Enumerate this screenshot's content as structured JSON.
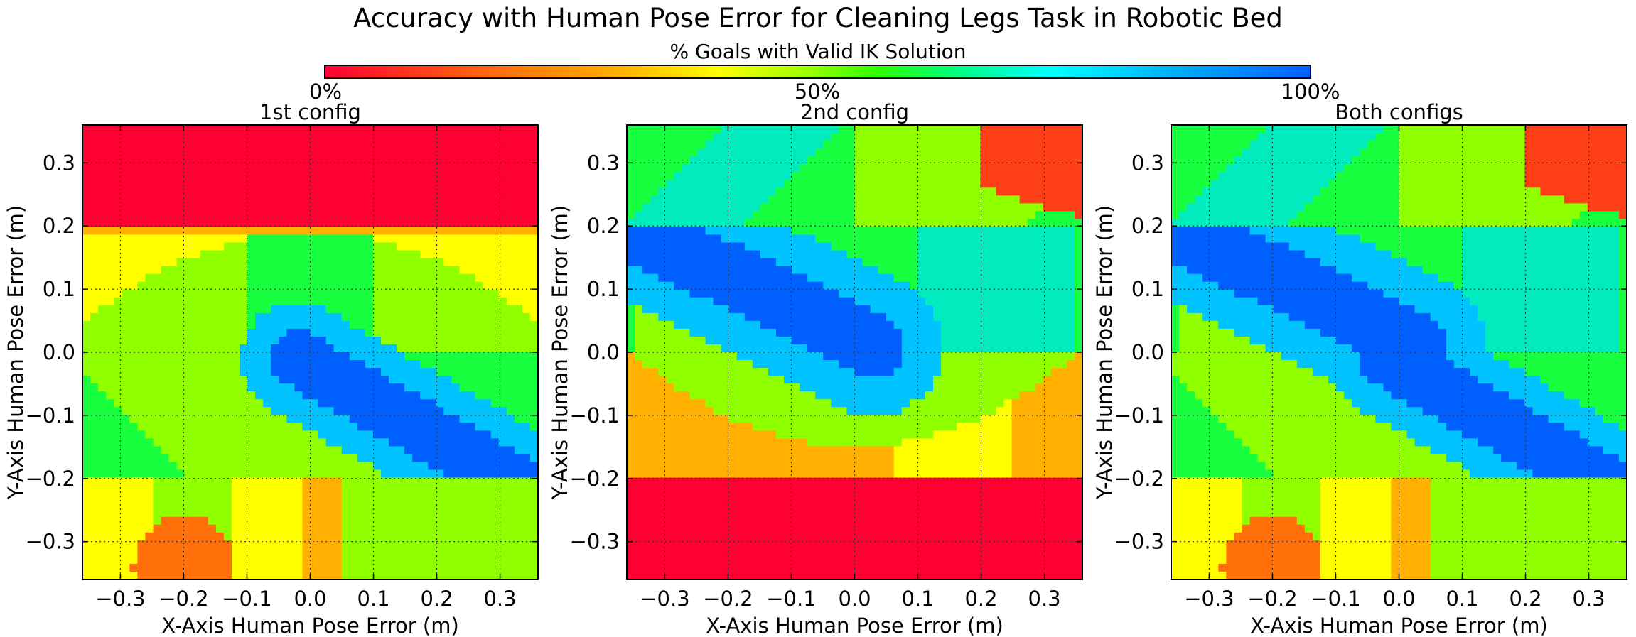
{
  "title": "Accuracy with Human Pose Error for Cleaning Legs Task in Robotic Bed",
  "colorbar": {
    "label": "% Goals with Valid IK Solution",
    "ticks": [
      "0%",
      "50%",
      "100%"
    ],
    "tick_values": [
      0,
      50,
      100
    ],
    "colormap": "jet-like (red → yellow → green → cyan → blue)"
  },
  "chart_data": [
    {
      "type": "heatmap",
      "title": "1st config",
      "xlabel": "X-Axis Human Pose Error (m)",
      "ylabel": "Y-Axis Human Pose Error (m)",
      "xlim": [
        -0.36,
        0.36
      ],
      "ylim": [
        -0.36,
        0.36
      ],
      "xticks": [
        -0.3,
        -0.2,
        -0.1,
        0.0,
        0.1,
        0.2,
        0.3
      ],
      "xtick_labels": [
        "−0.3",
        "−0.2",
        "−0.1",
        "0.0",
        "0.1",
        "0.2",
        "0.3"
      ],
      "yticks": [
        0.3,
        0.2,
        0.1,
        0.0,
        -0.1,
        -0.2,
        -0.3
      ],
      "ytick_labels": [
        "0.3",
        "0.2",
        "0.1",
        "0.0",
        "−0.1",
        "−0.2",
        "−0.3"
      ],
      "grid": true,
      "pattern": "config1",
      "regions": [
        {
          "y_range": [
            0.2,
            0.36
          ],
          "value_pct": 0
        },
        {
          "y_range": [
            -0.36,
            -0.2
          ],
          "value_pct": "20–45 (orange/yellow-green)"
        },
        {
          "y_range": [
            -0.2,
            0.2
          ],
          "value_pct": "arch: 40–60 green, diagonal band 75–100 blue from (-0.02,-0.01) to (0.33,-0.21)"
        }
      ]
    },
    {
      "type": "heatmap",
      "title": "2nd config",
      "xlabel": "X-Axis Human Pose Error (m)",
      "ylabel": "Y-Axis Human Pose Error (m)",
      "xlim": [
        -0.36,
        0.36
      ],
      "ylim": [
        -0.36,
        0.36
      ],
      "xticks": [
        -0.3,
        -0.2,
        -0.1,
        0.0,
        0.1,
        0.2,
        0.3
      ],
      "xtick_labels": [
        "−0.3",
        "−0.2",
        "−0.1",
        "0.0",
        "0.1",
        "0.2",
        "0.3"
      ],
      "yticks": [
        0.3,
        0.2,
        0.1,
        0.0,
        -0.1,
        -0.2,
        -0.3
      ],
      "ytick_labels": [
        "0.3",
        "0.2",
        "0.1",
        "0.0",
        "−0.1",
        "−0.2",
        "−0.3"
      ],
      "grid": true,
      "pattern": "config2",
      "regions": [
        {
          "y_range": [
            -0.36,
            -0.2
          ],
          "value_pct": 0
        },
        {
          "y_range": [
            -0.2,
            0.0
          ],
          "value_pct": "bowl: 25–55"
        },
        {
          "y_range": [
            0.0,
            0.2
          ],
          "value_pct": "diagonal band 80–100 blue from (-0.34,0.19) to (0.03,0.01)"
        },
        {
          "y_range": [
            0.2,
            0.36
          ],
          "value_pct": "60–75 teal, top-right corner 0–15 red"
        }
      ]
    },
    {
      "type": "heatmap",
      "title": "Both configs",
      "xlabel": "X-Axis Human Pose Error (m)",
      "ylabel": "Y-Axis Human Pose Error (m)",
      "xlim": [
        -0.36,
        0.36
      ],
      "ylim": [
        -0.36,
        0.36
      ],
      "xticks": [
        -0.3,
        -0.2,
        -0.1,
        0.0,
        0.1,
        0.2,
        0.3
      ],
      "xtick_labels": [
        "−0.3",
        "−0.2",
        "−0.1",
        "0.0",
        "0.1",
        "0.2",
        "0.3"
      ],
      "yticks": [
        0.3,
        0.2,
        0.1,
        0.0,
        -0.1,
        -0.2,
        -0.3
      ],
      "ytick_labels": [
        "0.3",
        "0.2",
        "0.1",
        "0.0",
        "−0.1",
        "−0.2",
        "−0.3"
      ],
      "grid": true,
      "pattern": "both",
      "regions": [
        {
          "y_range": [
            -0.2,
            0.2
          ],
          "value_pct": "X-shaped 90–100 blue band combining both diagonals"
        },
        {
          "y_range": [
            0.2,
            0.36
          ],
          "value_pct": "60–75, top-right 0–15"
        },
        {
          "y_range": [
            -0.36,
            -0.2
          ],
          "value_pct": "20–45, bottom-left 10"
        }
      ]
    }
  ]
}
